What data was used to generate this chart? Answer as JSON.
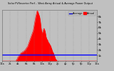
{
  "title": "Solar PV/Inverter Perf. - West Array Actual & Average Power Output",
  "legend_labels": [
    "Average",
    "Actual"
  ],
  "legend_colors": [
    "#0000cc",
    "#ff0000"
  ],
  "bg_color": "#c0c0c0",
  "plot_bg_color": "#c0c0c0",
  "bar_color": "#ff0000",
  "avg_line_color": "#0000ff",
  "avg_line_y": 0.065,
  "ylim": [
    0,
    0.55
  ],
  "xlim": [
    0,
    287
  ],
  "ytick_labels": [
    "8k",
    "7k",
    "6k",
    "5k",
    "4k",
    "3k",
    "2k",
    "1k"
  ],
  "ytick_vals": [
    0.48,
    0.42,
    0.36,
    0.3,
    0.24,
    0.18,
    0.12,
    0.06
  ],
  "n_points": 288,
  "data_values": [
    0,
    0,
    0,
    0,
    0,
    0,
    0,
    0,
    0,
    0,
    0,
    0,
    0,
    0,
    0,
    0,
    0,
    0,
    0,
    0,
    0,
    0,
    0,
    0,
    0,
    0,
    0,
    0,
    0,
    0,
    0,
    0,
    0,
    0,
    0,
    0,
    0,
    0,
    0,
    0,
    0,
    0,
    0.01,
    0.01,
    0.02,
    0.02,
    0.03,
    0.04,
    0.04,
    0.05,
    0.05,
    0.06,
    0.06,
    0.07,
    0.07,
    0.08,
    0.08,
    0.09,
    0.09,
    0.09,
    0.09,
    0.1,
    0.1,
    0.1,
    0.1,
    0.1,
    0.11,
    0.11,
    0.11,
    0.12,
    0.12,
    0.13,
    0.13,
    0.14,
    0.14,
    0.15,
    0.15,
    0.16,
    0.17,
    0.18,
    0.19,
    0.2,
    0.21,
    0.22,
    0.23,
    0.24,
    0.25,
    0.26,
    0.27,
    0.28,
    0.29,
    0.3,
    0.31,
    0.32,
    0.33,
    0.35,
    0.37,
    0.39,
    0.41,
    0.43,
    0.45,
    0.47,
    0.49,
    0.5,
    0.52,
    0.53,
    0.54,
    0.54,
    0.53,
    0.52,
    0.51,
    0.5,
    0.49,
    0.48,
    0.46,
    0.44,
    0.41,
    0.38,
    0.35,
    0.33,
    0.31,
    0.3,
    0.31,
    0.32,
    0.33,
    0.34,
    0.35,
    0.35,
    0.34,
    0.33,
    0.32,
    0.3,
    0.28,
    0.26,
    0.25,
    0.24,
    0.23,
    0.23,
    0.22,
    0.21,
    0.2,
    0.2,
    0.19,
    0.19,
    0.18,
    0.17,
    0.17,
    0.16,
    0.15,
    0.14,
    0.13,
    0.12,
    0.11,
    0.1,
    0.09,
    0.09,
    0.08,
    0.07,
    0.06,
    0.05,
    0.04,
    0.03,
    0.02,
    0.02,
    0.01,
    0.01,
    0,
    0,
    0,
    0,
    0,
    0,
    0,
    0,
    0,
    0,
    0,
    0,
    0,
    0,
    0,
    0,
    0,
    0,
    0,
    0,
    0,
    0,
    0,
    0,
    0,
    0,
    0,
    0,
    0,
    0,
    0,
    0,
    0,
    0,
    0,
    0,
    0,
    0,
    0,
    0,
    0,
    0,
    0,
    0,
    0,
    0,
    0,
    0,
    0,
    0,
    0,
    0,
    0,
    0,
    0,
    0,
    0,
    0,
    0,
    0,
    0,
    0,
    0,
    0,
    0,
    0,
    0,
    0,
    0,
    0,
    0,
    0,
    0,
    0,
    0,
    0,
    0,
    0,
    0,
    0,
    0,
    0,
    0,
    0,
    0,
    0,
    0,
    0,
    0,
    0,
    0,
    0,
    0,
    0,
    0,
    0,
    0,
    0,
    0,
    0,
    0,
    0,
    0,
    0
  ],
  "xtick_positions": [
    0,
    24,
    48,
    72,
    96,
    120,
    144,
    168,
    192,
    216,
    240,
    264,
    287
  ],
  "xtick_labels": [
    "12a",
    "2a",
    "4a",
    "6a",
    "8a",
    "10a",
    "12p",
    "2p",
    "4p",
    "6p",
    "8p",
    "10p",
    "12a"
  ]
}
